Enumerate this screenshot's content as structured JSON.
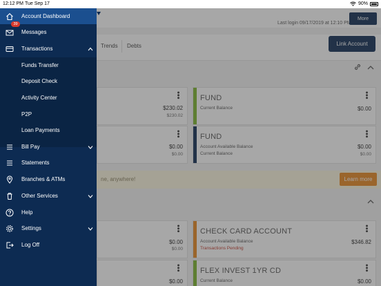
{
  "status_bar": {
    "time": "12:12 PM",
    "date": "Tue Sep 17",
    "battery": "90%"
  },
  "header": {
    "more_label": "More",
    "last_login": "Last login 09/17/2019 at 12:10 PM"
  },
  "tabs": [
    {
      "label": "Trends"
    },
    {
      "label": "Debts"
    }
  ],
  "link_account_label": "Link Account",
  "promo": {
    "text": "ne, anywhere!",
    "button_label": "Learn more"
  },
  "cards": [
    {
      "title": "",
      "amount": "$230.02",
      "sub_amount": "$230.02",
      "bar_color": ""
    },
    {
      "title": "FUND",
      "line1": "Current Balance",
      "amount": "$0.00",
      "bar_color": "#7ab52b"
    },
    {
      "title": "",
      "amount": "$0.00",
      "sub_amount": "$0.00",
      "bar_color": ""
    },
    {
      "title": "FUND",
      "line1": "Account Available Balance",
      "line2": "Current Balance",
      "amount": "$0.00",
      "sub_amount": "$0.00",
      "bar_color": "#0d2b52"
    },
    {
      "title": "",
      "amount": "$0.00",
      "sub_amount": "$0.00",
      "bar_color": ""
    },
    {
      "title": "CHECK CARD ACCOUNT",
      "line1": "Account Available Balance",
      "line2": "Transactions Pending",
      "amount": "$346.82",
      "bar_color": "#e8871e"
    },
    {
      "title": "",
      "amount": "$0.00",
      "bar_color": ""
    },
    {
      "title": "FLEX INVEST 1YR CD",
      "line1": "Current Balance",
      "amount": "$0.00",
      "bar_color": "#7ab52b"
    }
  ],
  "menu": {
    "items": [
      {
        "label": "Account Dashboard",
        "icon": "home-icon"
      },
      {
        "label": "Messages",
        "icon": "mail-icon",
        "badge": "39"
      },
      {
        "label": "Transactions",
        "icon": "card-icon"
      },
      {
        "label": "Funds Transfer"
      },
      {
        "label": "Deposit Check"
      },
      {
        "label": "Activity Center"
      },
      {
        "label": "P2P"
      },
      {
        "label": "Loan Payments"
      },
      {
        "label": "Bill Pay",
        "icon": "list-icon"
      },
      {
        "label": "Statements",
        "icon": "list-icon"
      },
      {
        "label": "Branches & ATMs",
        "icon": "location-pin-icon"
      },
      {
        "label": "Other Services",
        "icon": "trash-icon"
      },
      {
        "label": "Help",
        "icon": "help-icon"
      },
      {
        "label": "Settings",
        "icon": "gear-icon"
      },
      {
        "label": "Log Off",
        "icon": "logout-icon"
      }
    ]
  },
  "colors": {
    "navy": "#0d2b52",
    "active": "#1b4f8f",
    "orange": "#e8871e",
    "green": "#7ab52b"
  }
}
